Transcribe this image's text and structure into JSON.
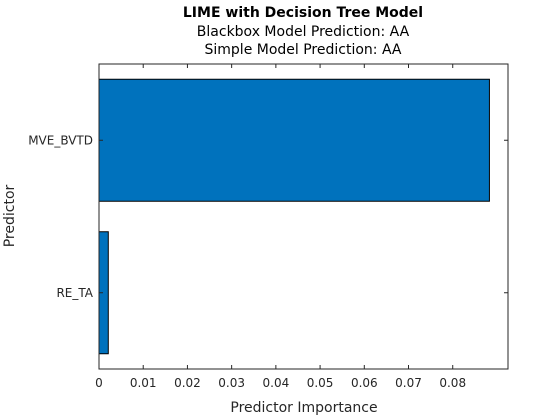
{
  "chart_data": {
    "type": "bar",
    "orientation": "horizontal",
    "title": "LIME with Decision Tree Model",
    "subtitle_lines": [
      "Blackbox Model Prediction: AA",
      "Simple Model Prediction: AA"
    ],
    "xlabel": "Predictor Importance",
    "ylabel": "Predictor",
    "categories": [
      "RE_TA",
      "MVE_BVTD"
    ],
    "values": [
      0.0021,
      0.0883
    ],
    "xlim": [
      0,
      0.0925
    ],
    "xticks": [
      0,
      0.01,
      0.02,
      0.03,
      0.04,
      0.05,
      0.06,
      0.07,
      0.08
    ],
    "xtick_labels": [
      "0",
      "0.01",
      "0.02",
      "0.03",
      "0.04",
      "0.05",
      "0.06",
      "0.07",
      "0.08"
    ],
    "grid": false,
    "legend": "none",
    "colors": {
      "bar": "#0072BD",
      "bar_edge": "#000000",
      "axis": "#262626"
    }
  }
}
